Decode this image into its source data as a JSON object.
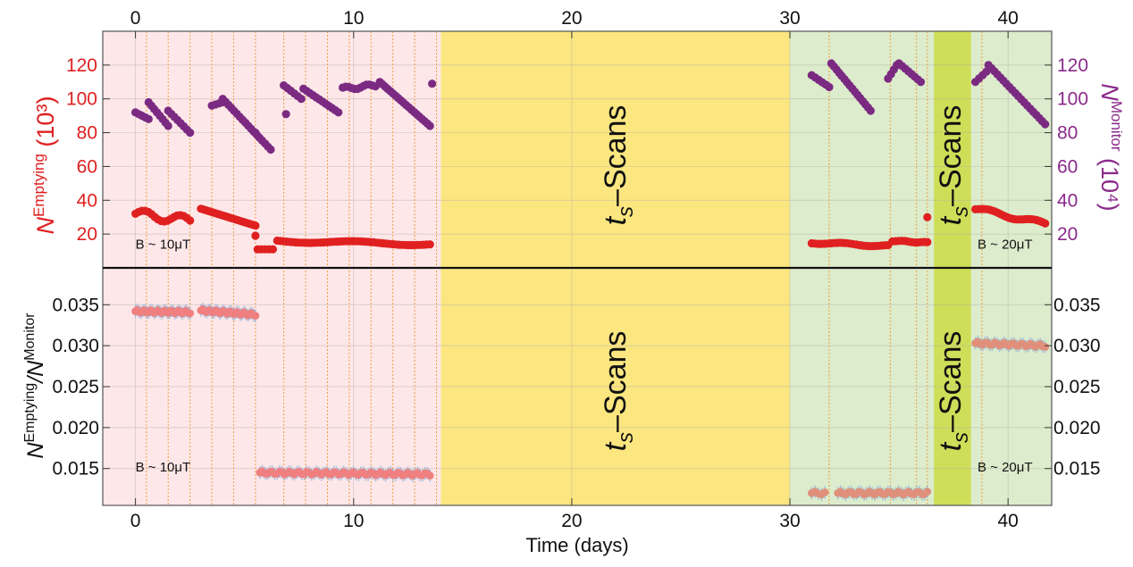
{
  "chart_data": [
    {
      "type": "scatter",
      "panel": "top",
      "xlim": [
        -1.5,
        42
      ],
      "top_axis_ticks": [
        "0",
        "10",
        "20",
        "30",
        "40"
      ],
      "y_left": {
        "label_main": "N",
        "label_sup": "Emptying",
        "label_unit": " (10³)",
        "ylim": [
          0,
          140
        ],
        "ticks": [
          20,
          40,
          60,
          80,
          100,
          120
        ],
        "color": "#e02020"
      },
      "y_right": {
        "label_main": "N",
        "label_sup": "Monitor",
        "label_unit": " (10⁴)",
        "ylim": [
          0,
          140
        ],
        "ticks": [
          20,
          40,
          60,
          80,
          100,
          120
        ],
        "color": "#8a2a8a"
      },
      "series": [
        {
          "name": "",
          "axis": "left",
          "color": "#e02020",
          "segments": [
            {
              "x0": 0.0,
              "x1": 2.5,
              "y0": 32,
              "y1": 28,
              "wave": 2.5,
              "n": 18
            },
            {
              "x0": 3.0,
              "x1": 5.5,
              "y0": 35,
              "y1": 25,
              "wave": 0,
              "n": 20
            },
            {
              "x0": 5.6,
              "x1": 6.3,
              "y0": 11,
              "y1": 11,
              "wave": 0,
              "n": 5
            },
            {
              "x0": 6.5,
              "x1": 13.5,
              "y0": 16,
              "y1": 14,
              "wave": 0.8,
              "n": 50
            },
            {
              "x0": 31.0,
              "x1": 34.5,
              "y0": 15,
              "y1": 13,
              "wave": 0.6,
              "n": 25
            },
            {
              "x0": 34.7,
              "x1": 36.3,
              "y0": 16,
              "y1": 15,
              "wave": 0.3,
              "n": 12
            },
            {
              "x0": 38.5,
              "x1": 41.7,
              "y0": 35,
              "y1": 26,
              "wave": 1.2,
              "n": 26
            }
          ],
          "singles": [
            [
              5.5,
              19
            ],
            [
              36.3,
              30
            ]
          ]
        },
        {
          "name": "",
          "axis": "right",
          "color": "#7b2a82",
          "segments": [
            {
              "x0": 0.0,
              "x1": 0.6,
              "y0": 92,
              "y1": 88,
              "wave": 0,
              "n": 5
            },
            {
              "x0": 0.6,
              "x1": 1.5,
              "y0": 98,
              "y1": 84,
              "wave": 0,
              "n": 8
            },
            {
              "x0": 1.5,
              "x1": 2.5,
              "y0": 93,
              "y1": 80,
              "wave": 0,
              "n": 8
            },
            {
              "x0": 3.5,
              "x1": 4.0,
              "y0": 96,
              "y1": 98,
              "wave": 0,
              "n": 4
            },
            {
              "x0": 4.0,
              "x1": 6.2,
              "y0": 100,
              "y1": 70,
              "wave": 0,
              "n": 18
            },
            {
              "x0": 6.8,
              "x1": 7.6,
              "y0": 108,
              "y1": 100,
              "wave": 0,
              "n": 6
            },
            {
              "x0": 7.7,
              "x1": 9.3,
              "y0": 106,
              "y1": 92,
              "wave": 0,
              "n": 12
            },
            {
              "x0": 9.5,
              "x1": 11.0,
              "y0": 106,
              "y1": 108,
              "wave": 1,
              "n": 12
            },
            {
              "x0": 11.2,
              "x1": 13.5,
              "y0": 110,
              "y1": 84,
              "wave": 0,
              "n": 20
            },
            {
              "x0": 31.0,
              "x1": 31.8,
              "y0": 114,
              "y1": 107,
              "wave": 0,
              "n": 6
            },
            {
              "x0": 31.9,
              "x1": 33.7,
              "y0": 121,
              "y1": 93,
              "wave": 0,
              "n": 16
            },
            {
              "x0": 34.5,
              "x1": 34.9,
              "y0": 112,
              "y1": 120,
              "wave": 0,
              "n": 4
            },
            {
              "x0": 35.0,
              "x1": 36.0,
              "y0": 121,
              "y1": 110,
              "wave": 0,
              "n": 8
            },
            {
              "x0": 38.5,
              "x1": 39.0,
              "y0": 110,
              "y1": 116,
              "wave": 0,
              "n": 4
            },
            {
              "x0": 39.1,
              "x1": 41.7,
              "y0": 120,
              "y1": 85,
              "wave": 0,
              "n": 20
            }
          ],
          "singles": [
            [
              5.5,
              80
            ],
            [
              6.9,
              91
            ],
            [
              13.6,
              109
            ]
          ]
        }
      ],
      "annotations": [
        {
          "text": "B ~ 10μT",
          "x": 0.0,
          "y": 14
        },
        {
          "text": "B ~ 20μT",
          "x": 38.6,
          "y": 14
        }
      ]
    },
    {
      "type": "scatter",
      "panel": "bottom",
      "xlim": [
        -1.5,
        42
      ],
      "xlabel": "Time (days)",
      "x_ticks": [
        0,
        10,
        20,
        30,
        40
      ],
      "ylabel_main": "N",
      "ylabel_sup1": "Emptying",
      "ylabel_mid": "/N",
      "ylabel_sup2": "Monitor",
      "ylim": [
        0.0105,
        0.0395
      ],
      "y_ticks": [
        "0.035",
        "0.030",
        "0.025",
        "0.020",
        "0.015"
      ],
      "series": [
        {
          "name": "",
          "color": "#f08080",
          "segments": [
            {
              "x0": 0.0,
              "x1": 2.5,
              "y0": 0.0342,
              "y1": 0.0341,
              "n": 30
            },
            {
              "x0": 3.0,
              "x1": 5.5,
              "y0": 0.0343,
              "y1": 0.0338,
              "n": 30
            },
            {
              "x0": 5.7,
              "x1": 13.5,
              "y0": 0.0145,
              "y1": 0.0143,
              "n": 70
            }
          ]
        },
        {
          "name": "",
          "color": "#e0907a",
          "segments": [
            {
              "x0": 31.0,
              "x1": 31.6,
              "y0": 0.012,
              "y1": 0.012,
              "n": 5
            },
            {
              "x0": 32.2,
              "x1": 36.3,
              "y0": 0.012,
              "y1": 0.012,
              "n": 35
            },
            {
              "x0": 38.5,
              "x1": 41.7,
              "y0": 0.0303,
              "y1": 0.03,
              "n": 30
            }
          ]
        }
      ],
      "annotations": [
        {
          "text": "B ~ 10μT",
          "x": 0.0,
          "y": 0.0152
        },
        {
          "text": "B ~ 20μT",
          "x": 38.6,
          "y": 0.0152
        }
      ]
    }
  ],
  "regions": {
    "pink": {
      "x0": -1.5,
      "x1": 14.0,
      "color": "#fde7e9"
    },
    "yellow": {
      "x0": 14.0,
      "x1": 30.0,
      "color": "#fbe680"
    },
    "green": {
      "x0": 30.0,
      "x1": 42.0,
      "color": "#dceccc"
    },
    "lime": {
      "x0": 36.6,
      "x1": 38.3,
      "color": "#cede58"
    }
  },
  "scan_label_main": "t",
  "scan_label_sub": "s",
  "scan_label_rest": "–Scans",
  "vlines_x": [
    0.5,
    1.5,
    2.5,
    3.5,
    4.5,
    5.5,
    6.8,
    7.8,
    8.8,
    9.8,
    10.8,
    11.8,
    12.8,
    13.8,
    31.8,
    34.6,
    35.8,
    36.3,
    38.8
  ]
}
